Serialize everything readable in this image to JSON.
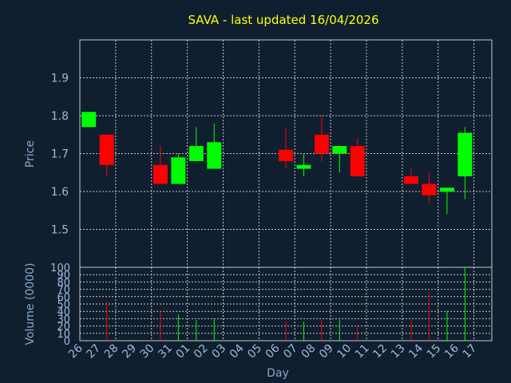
{
  "title": "SAVA - last updated 16/04/2026",
  "colors": {
    "up": "#00ff00",
    "down": "#ff0000",
    "background": "#0f1f30",
    "title": "#ffff00",
    "text": "#9fb8d8"
  },
  "chart_data": [
    {
      "type": "candlestick",
      "ylabel": "Price",
      "xlabel": "",
      "ylim": [
        1.4,
        2.0
      ],
      "yticks": [
        "1.5",
        "1.6",
        "1.7",
        "1.8",
        "1.9"
      ],
      "grid": true,
      "categories": [
        "26",
        "27",
        "28",
        "29",
        "30",
        "31",
        "01",
        "02",
        "03",
        "04",
        "05",
        "06",
        "07",
        "08",
        "09",
        "10",
        "11",
        "12",
        "13",
        "14",
        "15",
        "16",
        "17"
      ],
      "candles": [
        {
          "x": "26",
          "open": 1.77,
          "close": 1.81,
          "high": 1.81,
          "low": 1.77
        },
        {
          "x": "27",
          "open": 1.75,
          "close": 1.67,
          "high": 1.75,
          "low": 1.64
        },
        {
          "x": "30",
          "open": 1.67,
          "close": 1.62,
          "high": 1.72,
          "low": 1.62
        },
        {
          "x": "31",
          "open": 1.62,
          "close": 1.69,
          "high": 1.7,
          "low": 1.62
        },
        {
          "x": "01",
          "open": 1.68,
          "close": 1.72,
          "high": 1.77,
          "low": 1.68
        },
        {
          "x": "02",
          "open": 1.66,
          "close": 1.73,
          "high": 1.78,
          "low": 1.66
        },
        {
          "x": "06",
          "open": 1.71,
          "close": 1.68,
          "high": 1.77,
          "low": 1.66
        },
        {
          "x": "07",
          "open": 1.66,
          "close": 1.67,
          "high": 1.7,
          "low": 1.64
        },
        {
          "x": "08",
          "open": 1.75,
          "close": 1.7,
          "high": 1.8,
          "low": 1.68
        },
        {
          "x": "09",
          "open": 1.7,
          "close": 1.72,
          "high": 1.72,
          "low": 1.65
        },
        {
          "x": "10",
          "open": 1.72,
          "close": 1.64,
          "high": 1.74,
          "low": 1.64
        },
        {
          "x": "13",
          "open": 1.64,
          "close": 1.62,
          "high": 1.66,
          "low": 1.62
        },
        {
          "x": "14",
          "open": 1.62,
          "close": 1.59,
          "high": 1.65,
          "low": 1.57
        },
        {
          "x": "15",
          "open": 1.6,
          "close": 1.61,
          "high": 1.61,
          "low": 1.54
        },
        {
          "x": "16",
          "open": 1.64,
          "close": 1.755,
          "high": 1.77,
          "low": 1.58
        }
      ]
    },
    {
      "type": "bar",
      "ylabel": "Volume (0000)",
      "xlabel": "Day",
      "ylim": [
        0,
        100
      ],
      "yticks": [
        "0",
        "10",
        "20",
        "30",
        "40",
        "50",
        "60",
        "70",
        "80",
        "90",
        "100"
      ],
      "grid": true,
      "categories": [
        "26",
        "27",
        "28",
        "29",
        "30",
        "31",
        "01",
        "02",
        "03",
        "04",
        "05",
        "06",
        "07",
        "08",
        "09",
        "10",
        "11",
        "12",
        "13",
        "14",
        "15",
        "16",
        "17"
      ],
      "bars": [
        {
          "x": "26",
          "value": 0,
          "dir": "down"
        },
        {
          "x": "27",
          "value": 54,
          "dir": "down"
        },
        {
          "x": "30",
          "value": 40,
          "dir": "down"
        },
        {
          "x": "31",
          "value": 36,
          "dir": "up"
        },
        {
          "x": "01",
          "value": 28,
          "dir": "up"
        },
        {
          "x": "02",
          "value": 30,
          "dir": "up"
        },
        {
          "x": "06",
          "value": 26,
          "dir": "down"
        },
        {
          "x": "07",
          "value": 26,
          "dir": "up"
        },
        {
          "x": "08",
          "value": 28,
          "dir": "down"
        },
        {
          "x": "09",
          "value": 29,
          "dir": "up"
        },
        {
          "x": "10",
          "value": 20,
          "dir": "down"
        },
        {
          "x": "13",
          "value": 28,
          "dir": "down"
        },
        {
          "x": "14",
          "value": 66,
          "dir": "down"
        },
        {
          "x": "15",
          "value": 40,
          "dir": "up"
        },
        {
          "x": "16",
          "value": 100,
          "dir": "up"
        }
      ]
    }
  ]
}
